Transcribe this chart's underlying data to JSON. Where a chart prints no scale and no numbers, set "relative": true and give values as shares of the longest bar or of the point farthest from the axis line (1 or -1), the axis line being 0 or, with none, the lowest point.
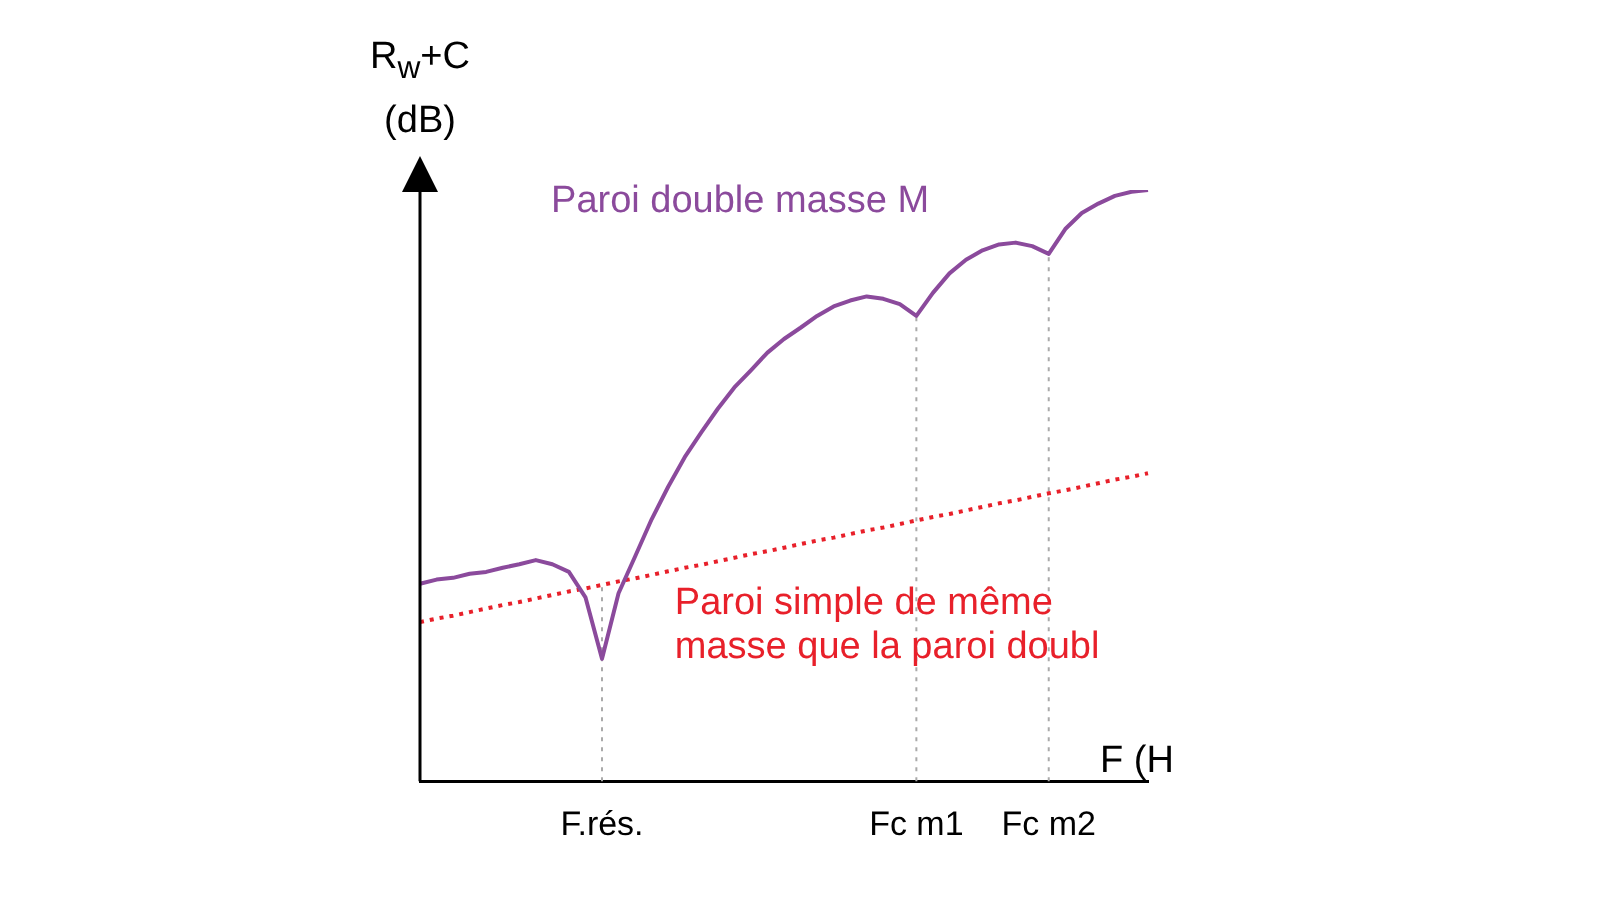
{
  "chart_data": {
    "type": "line",
    "relative": true,
    "marker": "none",
    "xlabel": "F (H",
    "ylabel": "R$_{w}$+C (dB)",
    "categories": [
      null,
      null,
      null,
      null,
      null,
      null,
      null,
      null,
      null,
      null,
      null,
      "F.rés.",
      null,
      null,
      null,
      null,
      null,
      null,
      null,
      null,
      null,
      null,
      null,
      null,
      null,
      null,
      null,
      null,
      null,
      null,
      "Fc m1",
      null,
      null,
      null,
      null,
      null,
      null,
      null,
      "Fc m2",
      null,
      null,
      null,
      null,
      null,
      null
    ],
    "series": [
      {
        "name": "Paroi double masse M",
        "color": "#8b4a9c",
        "line_style": "solid",
        "values": [
          0.334,
          0.341,
          0.344,
          0.351,
          0.354,
          0.361,
          0.367,
          0.374,
          0.367,
          0.354,
          0.311,
          0.207,
          0.318,
          0.38,
          0.443,
          0.498,
          0.548,
          0.59,
          0.63,
          0.666,
          0.695,
          0.725,
          0.748,
          0.767,
          0.787,
          0.803,
          0.813,
          0.82,
          0.816,
          0.807,
          0.787,
          0.826,
          0.859,
          0.882,
          0.898,
          0.908,
          0.911,
          0.905,
          0.892,
          0.934,
          0.961,
          0.977,
          0.99,
          0.997,
          1
        ]
      },
      {
        "name": "Paroi simple de même masse que la paroi doubl",
        "color": "#e8202a",
        "line_style": "dotted",
        "values": [
          0.269,
          0.275,
          0.28,
          0.286,
          0.292,
          0.298,
          0.303,
          0.309,
          0.315,
          0.321,
          0.326,
          0.332,
          0.338,
          0.343,
          0.349,
          0.355,
          0.361,
          0.366,
          0.372,
          0.378,
          0.384,
          0.389,
          0.395,
          0.401,
          0.407,
          0.412,
          0.418,
          0.424,
          0.429,
          0.435,
          0.441,
          0.447,
          0.452,
          0.458,
          0.464,
          0.47,
          0.475,
          0.481,
          0.487,
          0.492,
          0.498,
          0.504,
          0.51,
          0.515,
          0.521
        ]
      }
    ],
    "ref_lines": [
      {
        "axis": "x",
        "value": "F.rés.",
        "color": "#aaaaaa",
        "line_style": "dotted"
      },
      {
        "axis": "x",
        "value": "Fc m1",
        "color": "#aaaaaa",
        "line_style": "dotted"
      },
      {
        "axis": "x",
        "value": "Fc m2",
        "color": "#aaaaaa",
        "line_style": "dotted"
      }
    ]
  }
}
